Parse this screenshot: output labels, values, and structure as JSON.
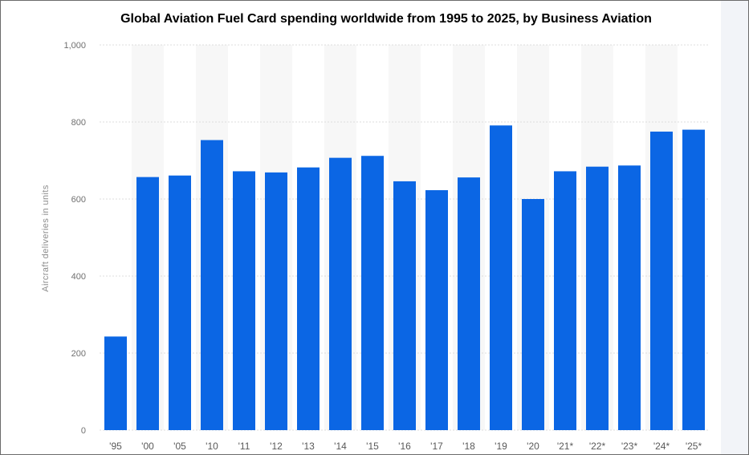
{
  "chart_data": {
    "type": "bar",
    "title": "Global Aviation Fuel Card spending worldwide from 1995 to 2025, by Business Aviation",
    "xlabel": "",
    "ylabel": "Aircraft deliveries in units",
    "categories": [
      "'95",
      "'00",
      "'05",
      "'10",
      "'11",
      "'12",
      "'13",
      "'14",
      "'15",
      "'16",
      "'17",
      "'18",
      "'19",
      "'20",
      "'21*",
      "'22*",
      "'23*",
      "'24*",
      "'25*"
    ],
    "values": [
      243,
      657,
      661,
      753,
      672,
      669,
      682,
      707,
      712,
      646,
      623,
      656,
      791,
      600,
      672,
      684,
      687,
      775,
      780
    ],
    "ylim": [
      0,
      1000
    ],
    "yticks": [
      0,
      200,
      400,
      600,
      800,
      1000
    ],
    "ytick_labels": [
      "0",
      "200",
      "400",
      "600",
      "800",
      "1,000"
    ],
    "grid": true,
    "bar_color": "#0b66e4",
    "band_color": "#f7f7f7",
    "gridline_color": "#dddddd"
  }
}
